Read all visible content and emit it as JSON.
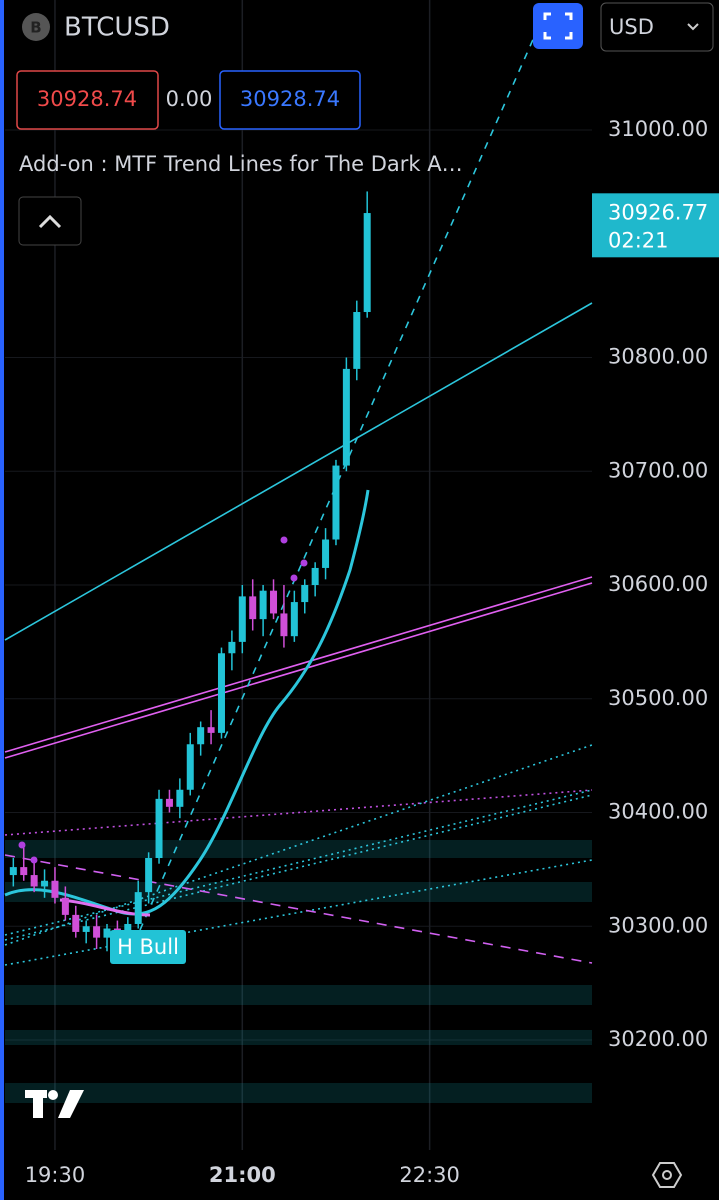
{
  "header": {
    "symbol": "BTCUSD",
    "symbol_icon": "B",
    "bid": "30928.74",
    "spread": "0.00",
    "ask": "30928.74",
    "indicator": "Add-on : MTF Trend Lines for The Dark A…",
    "currency": "USD"
  },
  "chart_data": {
    "type": "candlestick",
    "x": [
      -20,
      -15,
      -10,
      -5,
      0,
      5,
      10,
      15,
      20,
      25,
      30,
      35,
      40,
      45,
      50,
      55,
      60,
      65,
      70,
      75,
      80,
      85,
      90,
      95,
      100,
      105,
      110,
      115,
      120,
      125,
      130,
      135,
      140,
      145,
      150
    ],
    "open": [
      30345,
      30352,
      30345,
      30335,
      30340,
      30325,
      30310,
      30295,
      30300,
      30290,
      30298,
      30292,
      30302,
      30330,
      30360,
      30412,
      30405,
      30420,
      30460,
      30475,
      30470,
      30540,
      30550,
      30590,
      30570,
      30595,
      30575,
      30555,
      30585,
      30600,
      30615,
      30640,
      30705,
      30790,
      30840
    ],
    "high": [
      30360,
      30370,
      30358,
      30350,
      30352,
      30335,
      30318,
      30305,
      30310,
      30302,
      30305,
      30308,
      30340,
      30365,
      30420,
      30420,
      30430,
      30470,
      30480,
      30490,
      30545,
      30560,
      30600,
      30605,
      30600,
      30605,
      30600,
      30595,
      30605,
      30620,
      30650,
      30710,
      30800,
      30850,
      30946
    ],
    "low": [
      30335,
      30340,
      30330,
      30325,
      30320,
      30305,
      30290,
      30285,
      30280,
      30278,
      30285,
      30288,
      30298,
      30320,
      30355,
      30400,
      30395,
      30415,
      30450,
      30460,
      30465,
      30525,
      30540,
      30560,
      30555,
      30570,
      30545,
      30550,
      30575,
      30590,
      30605,
      30635,
      30700,
      30780,
      30835
    ],
    "close": [
      30352,
      30345,
      30335,
      30340,
      30325,
      30310,
      30295,
      30300,
      30290,
      30298,
      30292,
      30302,
      30330,
      30360,
      30412,
      30405,
      30420,
      30460,
      30475,
      30470,
      30540,
      30550,
      30590,
      30570,
      30595,
      30575,
      30555,
      30585,
      30600,
      30615,
      30640,
      30705,
      30790,
      30840,
      30927
    ],
    "up_color": "#22c3d6",
    "down_color": "#d04fd8",
    "xlim": [
      -24,
      258
    ],
    "xticks": [
      {
        "value": 0,
        "label": "19:30"
      },
      {
        "value": 90,
        "label": "21:00"
      },
      {
        "value": 180,
        "label": "22:30"
      }
    ],
    "ylim": [
      30103.3,
      31114.3
    ],
    "yticks": [
      {
        "value": 30200,
        "label": "30200.00"
      },
      {
        "value": 30300,
        "label": "30300.00"
      },
      {
        "value": 30400,
        "label": "30400.00"
      },
      {
        "value": 30500,
        "label": "30500.00"
      },
      {
        "value": 30600,
        "label": "30600.00"
      },
      {
        "value": 30700,
        "label": "30700.00"
      },
      {
        "value": 30800,
        "label": "30800.00"
      },
      {
        "value": 31000,
        "label": "31000.00"
      }
    ],
    "grid": true,
    "last_price": 30926.77,
    "countdown": "02:21",
    "annotations": [
      "H Bull"
    ]
  }
}
